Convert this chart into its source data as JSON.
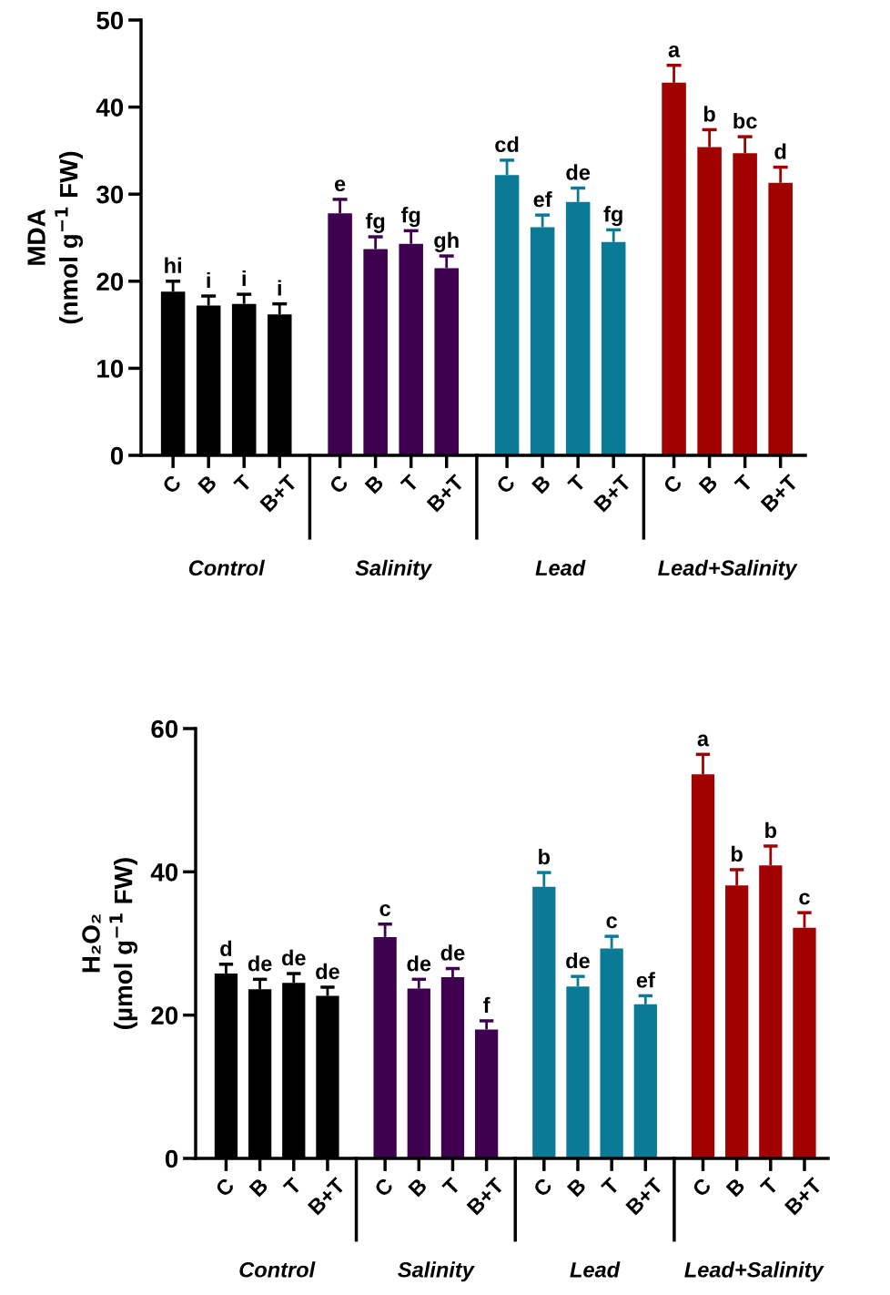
{
  "chart_data": [
    {
      "type": "bar",
      "ylabel": "MDA\n(nmol g$^{−1}$ FW)",
      "categories": [
        "C",
        "B",
        "T",
        "B+T",
        "C",
        "B",
        "T",
        "B+T",
        "C",
        "B",
        "T",
        "B+T",
        "C",
        "B",
        "T",
        "B+T"
      ],
      "annotations": [
        "Control",
        "Salinity",
        "Lead",
        "Lead+Salinity"
      ],
      "series": [
        {
          "color": "#000000",
          "values": [
            18.8,
            17.2,
            17.4,
            16.2,
            null,
            null,
            null,
            null,
            null,
            null,
            null,
            null,
            null,
            null,
            null,
            null
          ],
          "errors": [
            [
              18.8,
              20.0
            ],
            [
              17.2,
              18.3
            ],
            [
              17.4,
              18.5
            ],
            [
              16.2,
              17.4
            ],
            null,
            null,
            null,
            null,
            null,
            null,
            null,
            null,
            null,
            null,
            null,
            null
          ],
          "value_labels": [
            "hi",
            "i",
            "i",
            "i",
            null,
            null,
            null,
            null,
            null,
            null,
            null,
            null,
            null,
            null,
            null,
            null
          ]
        },
        {
          "color": "#3f0050",
          "values": [
            null,
            null,
            null,
            null,
            27.8,
            23.7,
            24.3,
            21.5,
            null,
            null,
            null,
            null,
            null,
            null,
            null,
            null
          ],
          "errors": [
            null,
            null,
            null,
            null,
            [
              27.8,
              29.4
            ],
            [
              23.7,
              25.1
            ],
            [
              24.3,
              25.8
            ],
            [
              21.5,
              22.9
            ],
            null,
            null,
            null,
            null,
            null,
            null,
            null,
            null
          ],
          "value_labels": [
            null,
            null,
            null,
            null,
            "e",
            "fg",
            "fg",
            "gh",
            null,
            null,
            null,
            null,
            null,
            null,
            null,
            null
          ]
        },
        {
          "color": "#0a7a96",
          "values": [
            null,
            null,
            null,
            null,
            null,
            null,
            null,
            null,
            32.2,
            26.2,
            29.1,
            24.5,
            null,
            null,
            null,
            null
          ],
          "errors": [
            null,
            null,
            null,
            null,
            null,
            null,
            null,
            null,
            [
              32.2,
              33.9
            ],
            [
              26.2,
              27.6
            ],
            [
              29.1,
              30.7
            ],
            [
              24.5,
              25.9
            ],
            null,
            null,
            null,
            null
          ],
          "value_labels": [
            null,
            null,
            null,
            null,
            null,
            null,
            null,
            null,
            "cd",
            "ef",
            "de",
            "fg",
            null,
            null,
            null,
            null
          ]
        },
        {
          "color": "#a00000",
          "values": [
            null,
            null,
            null,
            null,
            null,
            null,
            null,
            null,
            null,
            null,
            null,
            null,
            42.8,
            35.4,
            34.7,
            31.3
          ],
          "errors": [
            null,
            null,
            null,
            null,
            null,
            null,
            null,
            null,
            null,
            null,
            null,
            null,
            [
              42.8,
              44.8
            ],
            [
              35.4,
              37.4
            ],
            [
              34.7,
              36.6
            ],
            [
              31.3,
              33.1
            ]
          ],
          "value_labels": [
            null,
            null,
            null,
            null,
            null,
            null,
            null,
            null,
            null,
            null,
            null,
            null,
            "a",
            "b",
            "bc",
            "d"
          ]
        }
      ],
      "ylim": [
        0,
        50
      ],
      "yticks": [
        0,
        10,
        20,
        30,
        40,
        50
      ],
      "grid": false,
      "legend": false
    },
    {
      "type": "bar",
      "ylabel": "H₂O₂\n(µmol g$^{−1}$ FW)",
      "categories": [
        "C",
        "B",
        "T",
        "B+T",
        "C",
        "B",
        "T",
        "B+T",
        "C",
        "B",
        "T",
        "B+T",
        "C",
        "B",
        "T",
        "B+T"
      ],
      "annotations": [
        "Control",
        "Salinity",
        "Lead",
        "Lead+Salinity"
      ],
      "series": [
        {
          "color": "#000000",
          "values": [
            25.8,
            23.6,
            24.5,
            22.7,
            null,
            null,
            null,
            null,
            null,
            null,
            null,
            null,
            null,
            null,
            null,
            null
          ],
          "errors": [
            [
              25.8,
              27.1
            ],
            [
              23.6,
              25.0
            ],
            [
              24.5,
              25.8
            ],
            [
              22.7,
              23.9
            ],
            null,
            null,
            null,
            null,
            null,
            null,
            null,
            null,
            null,
            null,
            null,
            null
          ],
          "value_labels": [
            "d",
            "de",
            "de",
            "de",
            null,
            null,
            null,
            null,
            null,
            null,
            null,
            null,
            null,
            null,
            null,
            null
          ]
        },
        {
          "color": "#3f0050",
          "values": [
            null,
            null,
            null,
            null,
            30.9,
            23.7,
            25.3,
            18.0,
            null,
            null,
            null,
            null,
            null,
            null,
            null,
            null
          ],
          "errors": [
            null,
            null,
            null,
            null,
            [
              30.9,
              32.7
            ],
            [
              23.7,
              25.0
            ],
            [
              25.3,
              26.5
            ],
            [
              18.0,
              19.2
            ],
            null,
            null,
            null,
            null,
            null,
            null,
            null,
            null
          ],
          "value_labels": [
            null,
            null,
            null,
            null,
            "c",
            "de",
            "de",
            "f",
            null,
            null,
            null,
            null,
            null,
            null,
            null,
            null
          ]
        },
        {
          "color": "#0a7a96",
          "values": [
            null,
            null,
            null,
            null,
            null,
            null,
            null,
            null,
            37.9,
            24.0,
            29.3,
            21.5,
            null,
            null,
            null,
            null
          ],
          "errors": [
            null,
            null,
            null,
            null,
            null,
            null,
            null,
            null,
            [
              37.9,
              39.9
            ],
            [
              24.0,
              25.4
            ],
            [
              29.3,
              31.0
            ],
            [
              21.5,
              22.7
            ],
            null,
            null,
            null,
            null
          ],
          "value_labels": [
            null,
            null,
            null,
            null,
            null,
            null,
            null,
            null,
            "b",
            "de",
            "c",
            "ef",
            null,
            null,
            null,
            null
          ]
        },
        {
          "color": "#a00000",
          "values": [
            null,
            null,
            null,
            null,
            null,
            null,
            null,
            null,
            null,
            null,
            null,
            null,
            53.6,
            38.1,
            40.9,
            32.2
          ],
          "errors": [
            null,
            null,
            null,
            null,
            null,
            null,
            null,
            null,
            null,
            null,
            null,
            null,
            [
              53.6,
              56.4
            ],
            [
              38.1,
              40.3
            ],
            [
              40.9,
              43.6
            ],
            [
              32.2,
              34.3
            ]
          ],
          "value_labels": [
            null,
            null,
            null,
            null,
            null,
            null,
            null,
            null,
            null,
            null,
            null,
            null,
            "a",
            "b",
            "b",
            "c"
          ]
        }
      ],
      "ylim": [
        0,
        60
      ],
      "yticks": [
        0,
        20,
        40,
        60
      ],
      "grid": false,
      "legend": false
    }
  ]
}
